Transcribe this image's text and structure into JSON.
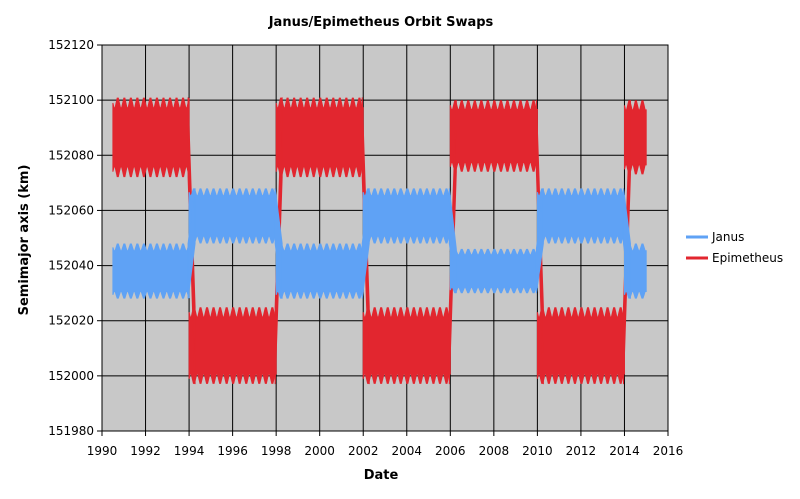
{
  "chart_data": {
    "type": "line",
    "title": "Janus/Epimetheus Orbit Swaps",
    "xlabel": "Date",
    "ylabel": "Semimajor axis (km)",
    "xlim": [
      1990,
      2016
    ],
    "ylim": [
      151980,
      152120
    ],
    "x_ticks": [
      1990,
      1992,
      1994,
      1996,
      1998,
      2000,
      2002,
      2004,
      2006,
      2008,
      2010,
      2012,
      2014,
      2016
    ],
    "y_ticks": [
      151980,
      152000,
      152020,
      152040,
      152060,
      152080,
      152100,
      152120
    ],
    "grid": true,
    "legend_position": "right",
    "oscillation_period_years": 0.3,
    "series": [
      {
        "name": "Janus",
        "color": "#5fa2f5",
        "segments": [
          {
            "x_start": 1990.5,
            "x_end": 1994.0,
            "y_min": 152028,
            "y_max": 152048
          },
          {
            "x_start": 1994.0,
            "x_end": 1998.0,
            "y_min": 152048,
            "y_max": 152068
          },
          {
            "x_start": 1998.0,
            "x_end": 2002.0,
            "y_min": 152028,
            "y_max": 152048
          },
          {
            "x_start": 2002.0,
            "x_end": 2006.0,
            "y_min": 152048,
            "y_max": 152068
          },
          {
            "x_start": 2006.0,
            "x_end": 2010.0,
            "y_min": 152030,
            "y_max": 152046
          },
          {
            "x_start": 2010.0,
            "x_end": 2014.0,
            "y_min": 152048,
            "y_max": 152068
          },
          {
            "x_start": 2014.0,
            "x_end": 2015.0,
            "y_min": 152028,
            "y_max": 152048
          }
        ]
      },
      {
        "name": "Epimetheus",
        "color": "#e2262f",
        "segments": [
          {
            "x_start": 1990.5,
            "x_end": 1994.0,
            "y_min": 152072,
            "y_max": 152101
          },
          {
            "x_start": 1994.0,
            "x_end": 1998.0,
            "y_min": 151997,
            "y_max": 152025
          },
          {
            "x_start": 1998.0,
            "x_end": 2002.0,
            "y_min": 152072,
            "y_max": 152101
          },
          {
            "x_start": 2002.0,
            "x_end": 2006.0,
            "y_min": 151997,
            "y_max": 152025
          },
          {
            "x_start": 2006.0,
            "x_end": 2010.0,
            "y_min": 152074,
            "y_max": 152100
          },
          {
            "x_start": 2010.0,
            "x_end": 2014.0,
            "y_min": 151997,
            "y_max": 152025
          },
          {
            "x_start": 2014.0,
            "x_end": 2015.0,
            "y_min": 152073,
            "y_max": 152100
          }
        ]
      }
    ]
  }
}
